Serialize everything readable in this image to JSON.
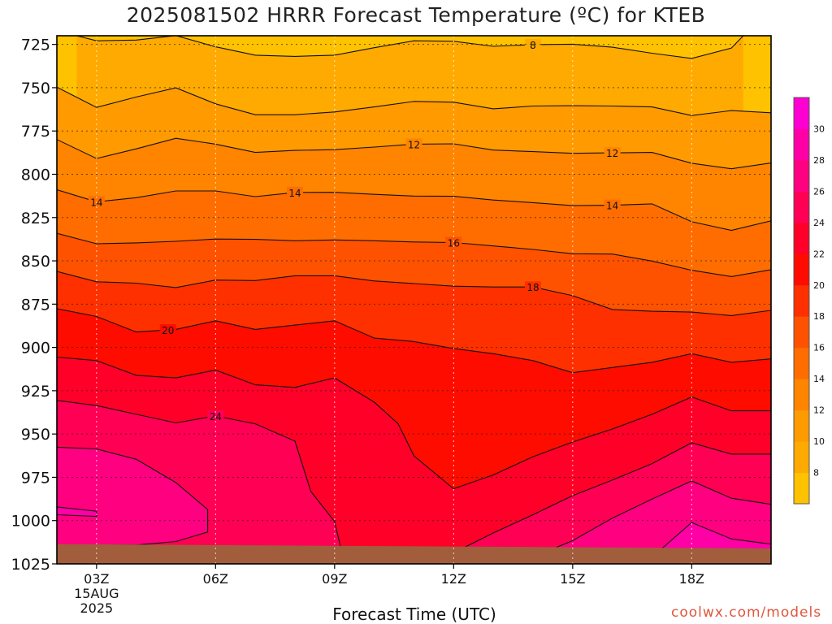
{
  "page": {
    "title": "2025081502 HRRR Forecast Temperature (ºC) for KTEB",
    "credit": "coolwx.com/models"
  },
  "chart_data": {
    "type": "heatmap",
    "title": "2025081502 HRRR Forecast Temperature (ºC) for KTEB",
    "xlabel": "Forecast Time (UTC)",
    "ylabel": "",
    "x_ticks": [
      {
        "hour": 3,
        "label": "03Z",
        "sublabels": [
          "15AUG",
          "2025"
        ]
      },
      {
        "hour": 6,
        "label": "06Z",
        "sublabels": []
      },
      {
        "hour": 9,
        "label": "09Z",
        "sublabels": []
      },
      {
        "hour": 12,
        "label": "12Z",
        "sublabels": []
      },
      {
        "hour": 15,
        "label": "15Z",
        "sublabels": []
      },
      {
        "hour": 18,
        "label": "18Z",
        "sublabels": []
      }
    ],
    "xlim": [
      2,
      20
    ],
    "y_ticks": [
      725,
      750,
      775,
      800,
      825,
      850,
      875,
      900,
      925,
      950,
      975,
      1000,
      1025
    ],
    "ylim": [
      720,
      1025
    ],
    "grid": true,
    "colorbar": {
      "levels": [
        6,
        8,
        10,
        12,
        14,
        16,
        18,
        20,
        22,
        24,
        26,
        28,
        30,
        32
      ],
      "colors": [
        "#ffc200",
        "#ffaa00",
        "#ff9a00",
        "#ff8400",
        "#ff6d00",
        "#ff5200",
        "#ff3000",
        "#ff0c00",
        "#ff0028",
        "#ff0055",
        "#ff0080",
        "#ff00a6",
        "#ff00d2"
      ],
      "tick_labels": [
        8,
        10,
        12,
        14,
        16,
        18,
        20,
        22,
        24,
        26,
        28,
        30
      ]
    },
    "contours": [
      {
        "level": 8,
        "label": "8",
        "label_at": 14,
        "points": [
          [
            2.5,
            720
          ],
          [
            3,
            722.9
          ],
          [
            4,
            722.5
          ],
          [
            5,
            719.9
          ],
          [
            6,
            726.4
          ],
          [
            7,
            731.2
          ],
          [
            8,
            731.9
          ],
          [
            9,
            731.2
          ],
          [
            10,
            726.9
          ],
          [
            11,
            722.9
          ],
          [
            12,
            723.2
          ],
          [
            13,
            726.1
          ],
          [
            14,
            725.1
          ],
          [
            15,
            724.9
          ],
          [
            16,
            726.6
          ],
          [
            17,
            730.1
          ],
          [
            18,
            733.1
          ],
          [
            19,
            727.1
          ],
          [
            19.3,
            720
          ]
        ]
      },
      {
        "level": 10,
        "label": "",
        "label_at": null,
        "points": [
          [
            2,
            749.7
          ],
          [
            3,
            761.4
          ],
          [
            4,
            755.4
          ],
          [
            5,
            750.1
          ],
          [
            6,
            759.3
          ],
          [
            7,
            765.6
          ],
          [
            8,
            765.6
          ],
          [
            9,
            764
          ],
          [
            10,
            761.1
          ],
          [
            11,
            757.9
          ],
          [
            12,
            758.4
          ],
          [
            13,
            762.2
          ],
          [
            14,
            760.6
          ],
          [
            15,
            760.4
          ],
          [
            16,
            760.6
          ],
          [
            17,
            761.1
          ],
          [
            18,
            766.1
          ],
          [
            19,
            763.2
          ],
          [
            20,
            764.5
          ]
        ]
      },
      {
        "level": 12,
        "label": "12",
        "label_at": 11,
        "label_at2": 16,
        "points": [
          [
            2,
            779.9
          ],
          [
            3,
            790.9
          ],
          [
            4,
            785.3
          ],
          [
            5,
            779.2
          ],
          [
            6,
            782.6
          ],
          [
            7,
            787.4
          ],
          [
            8,
            786.2
          ],
          [
            9,
            785.8
          ],
          [
            10,
            784.3
          ],
          [
            11,
            782.6
          ],
          [
            12,
            782.4
          ],
          [
            13,
            786
          ],
          [
            14,
            786.9
          ],
          [
            15,
            787.9
          ],
          [
            16,
            787.6
          ],
          [
            17,
            787.4
          ],
          [
            18,
            793.6
          ],
          [
            19,
            796.8
          ],
          [
            20,
            793.5
          ]
        ]
      },
      {
        "level": 14,
        "label": "14",
        "label_at": 3,
        "label_at2": 8,
        "label_at3": 16,
        "points": [
          [
            2,
            808.9
          ],
          [
            3,
            815.9
          ],
          [
            4,
            813.5
          ],
          [
            5,
            809.6
          ],
          [
            6,
            809.6
          ],
          [
            7,
            812.9
          ],
          [
            8,
            810.5
          ],
          [
            9,
            810.4
          ],
          [
            10,
            811.6
          ],
          [
            11,
            812.6
          ],
          [
            12,
            812.7
          ],
          [
            13,
            814.9
          ],
          [
            14,
            816.4
          ],
          [
            15,
            818.1
          ],
          [
            16,
            817.9
          ],
          [
            17,
            817.1
          ],
          [
            18,
            827.4
          ],
          [
            19,
            832.4
          ],
          [
            20,
            826.9
          ]
        ]
      },
      {
        "level": 16,
        "label": "16",
        "label_at": 12,
        "points": [
          [
            2,
            834.1
          ],
          [
            3,
            840.1
          ],
          [
            4,
            839.6
          ],
          [
            5,
            838.7
          ],
          [
            6,
            837.4
          ],
          [
            7,
            837.6
          ],
          [
            8,
            838.4
          ],
          [
            9,
            837.9
          ],
          [
            10,
            838.4
          ],
          [
            11,
            839.1
          ],
          [
            12,
            839.4
          ],
          [
            13,
            841.4
          ],
          [
            14,
            843.4
          ],
          [
            15,
            845.9
          ],
          [
            16,
            846.1
          ],
          [
            17,
            850.1
          ],
          [
            18,
            855.4
          ],
          [
            19,
            859.1
          ],
          [
            20,
            855.1
          ]
        ]
      },
      {
        "level": 18,
        "label": "18",
        "label_at": 14,
        "points": [
          [
            2,
            856.1
          ],
          [
            3,
            862.1
          ],
          [
            4,
            862.9
          ],
          [
            5,
            865.4
          ],
          [
            6,
            861.1
          ],
          [
            7,
            861.4
          ],
          [
            8,
            858.6
          ],
          [
            9,
            858.6
          ],
          [
            10,
            861.6
          ],
          [
            11,
            863.1
          ],
          [
            12,
            864.6
          ],
          [
            13,
            865.1
          ],
          [
            14,
            865.1
          ],
          [
            15,
            870.1
          ],
          [
            16,
            878.1
          ],
          [
            17,
            879.1
          ],
          [
            18,
            879.6
          ],
          [
            19,
            881.6
          ],
          [
            20,
            878.6
          ]
        ]
      },
      {
        "level": 20,
        "label": "20",
        "label_at": 4.8,
        "points": [
          [
            2,
            877.6
          ],
          [
            3,
            882.1
          ],
          [
            4,
            891.1
          ],
          [
            5,
            889.6
          ],
          [
            6,
            884.6
          ],
          [
            7,
            889.6
          ],
          [
            8,
            887.1
          ],
          [
            9,
            884.6
          ],
          [
            10,
            894.6
          ],
          [
            11,
            896.6
          ],
          [
            12,
            900.6
          ],
          [
            13,
            903.6
          ],
          [
            14,
            907.6
          ],
          [
            15,
            914.6
          ],
          [
            16,
            911.6
          ],
          [
            17,
            908.6
          ],
          [
            18,
            903.6
          ],
          [
            19,
            908.6
          ],
          [
            20,
            906.6
          ]
        ]
      },
      {
        "level": 22,
        "label": "",
        "label_at": null,
        "points": [
          [
            2,
            905.6
          ],
          [
            3,
            907.6
          ],
          [
            4,
            916.1
          ],
          [
            5,
            917.6
          ],
          [
            6,
            913.1
          ],
          [
            7,
            921.6
          ],
          [
            8,
            923.1
          ],
          [
            9,
            917.6
          ],
          [
            10,
            931.6
          ],
          [
            10.6,
            944.1
          ],
          [
            11,
            962.6
          ],
          [
            12,
            981.6
          ],
          [
            13,
            973.6
          ],
          [
            14,
            963.1
          ],
          [
            15,
            954.6
          ],
          [
            16,
            947.1
          ],
          [
            17,
            938.6
          ],
          [
            18,
            928.6
          ],
          [
            19,
            936.6
          ],
          [
            20,
            936.6
          ]
        ]
      },
      {
        "level": 24,
        "label": "24",
        "label_at": 6,
        "points": [
          [
            2,
            930.6
          ],
          [
            3,
            933.6
          ],
          [
            4,
            938.6
          ],
          [
            5,
            943.6
          ],
          [
            6,
            939.6
          ],
          [
            7,
            944.1
          ],
          [
            8,
            954.1
          ],
          [
            8.4,
            983.1
          ],
          [
            9,
            1000.6
          ],
          [
            9.2,
            1020.1
          ],
          [
            11.5,
            1025
          ],
          [
            12,
            1018.6
          ],
          [
            13,
            1007.1
          ],
          [
            14,
            996.6
          ],
          [
            15,
            985.6
          ],
          [
            16,
            976.6
          ],
          [
            17,
            967.1
          ],
          [
            18,
            955.1
          ],
          [
            19,
            961.6
          ],
          [
            20,
            961.6
          ]
        ]
      },
      {
        "level": 26,
        "label": "",
        "label_at": null,
        "points": [
          [
            2,
            957.6
          ],
          [
            3,
            958.6
          ],
          [
            4,
            964.6
          ],
          [
            5,
            978.1
          ],
          [
            5.8,
            993.6
          ],
          [
            5.8,
            1006.6
          ],
          [
            5,
            1012.1
          ],
          [
            4,
            1014.1
          ],
          [
            2,
            1014.1
          ]
        ]
      },
      {
        "level": 26,
        "label": "",
        "label_at": null,
        "points": [
          [
            13.6,
            1025
          ],
          [
            14,
            1021.1
          ],
          [
            15,
            1011.6
          ],
          [
            16,
            998.6
          ],
          [
            17,
            987.6
          ],
          [
            18,
            977.1
          ],
          [
            19,
            987.1
          ],
          [
            20,
            990.6
          ]
        ]
      },
      {
        "level": 28,
        "label": "",
        "label_at": null,
        "points": [
          [
            2,
            992.1
          ],
          [
            3,
            994.6
          ],
          [
            3,
            997.6
          ],
          [
            2,
            996.6
          ]
        ]
      },
      {
        "level": 28,
        "label": "",
        "label_at": null,
        "points": [
          [
            16.8,
            1025
          ],
          [
            17,
            1021.1
          ],
          [
            18,
            1001.1
          ],
          [
            19,
            1010.6
          ],
          [
            20,
            1013.6
          ]
        ]
      }
    ],
    "terrain": {
      "color": "#a25d3c",
      "pressure_left": 1013.6,
      "pressure_right": 1016.1
    }
  }
}
